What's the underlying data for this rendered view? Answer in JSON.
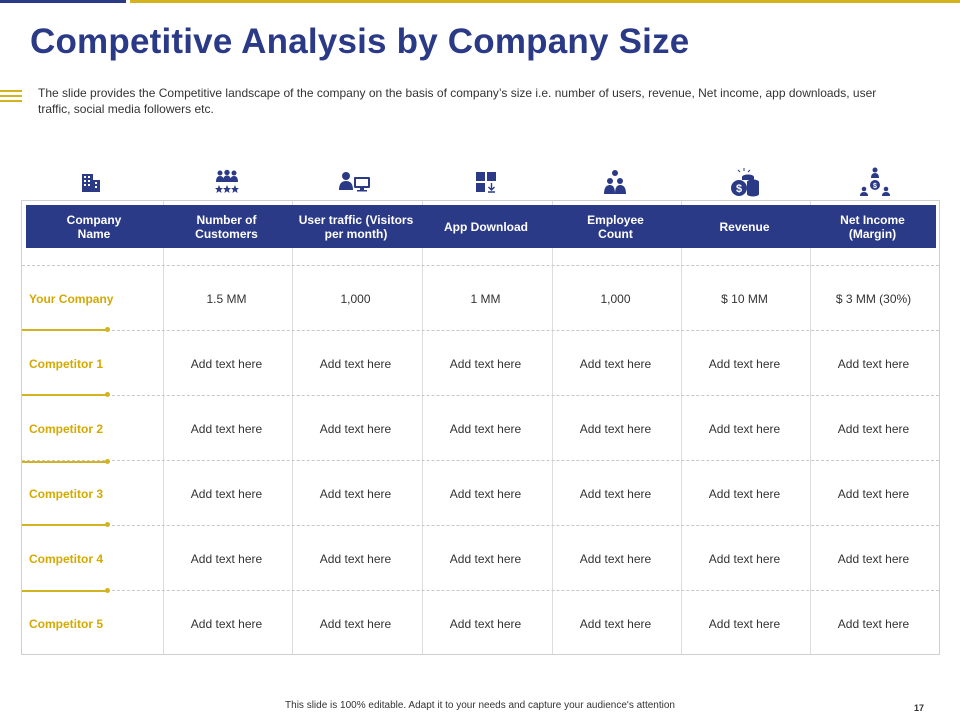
{
  "slide": {
    "title": "Competitive Analysis by Company Size",
    "description": "The slide provides  the Competitive  landscape of the company on the basis of company’s size i.e. number of users, revenue,  Net income, app downloads,  user traffic,  social media followers  etc.",
    "footer": "This slide is 100% editable.  Adapt it to your needs and capture your audience's attention",
    "page_number": "17"
  },
  "icons": [
    "building-icon",
    "people-group-icon",
    "user-monitor-icon",
    "app-grid-icon",
    "employee-group-icon",
    "coins-icon",
    "net-income-icon"
  ],
  "table": {
    "headers": [
      "Company\nName",
      "Number of\nCustomers",
      "User traffic (Visitors\nper month)",
      "App Download",
      "Employee\nCount",
      "Revenue",
      "Net Income\n(Margin)"
    ],
    "rows": [
      {
        "name": "Your Company",
        "cells": [
          "1.5 MM",
          "1,000",
          "1 MM",
          "1,000",
          "$ 10 MM",
          "$ 3 MM  (30%)"
        ]
      },
      {
        "name": "Competitor 1",
        "cells": [
          "Add text here",
          "Add text here",
          "Add text here",
          "Add text here",
          "Add text here",
          "Add text here"
        ]
      },
      {
        "name": "Competitor 2",
        "cells": [
          "Add text here",
          "Add text here",
          "Add text here",
          "Add text here",
          "Add text here",
          "Add text here"
        ]
      },
      {
        "name": "Competitor 3",
        "cells": [
          "Add text here",
          "Add text here",
          "Add text here",
          "Add text here",
          "Add text here",
          "Add text here"
        ]
      },
      {
        "name": "Competitor 4",
        "cells": [
          "Add text here",
          "Add text here",
          "Add text here",
          "Add text here",
          "Add text here",
          "Add text here"
        ]
      },
      {
        "name": "Competitor 5",
        "cells": [
          "Add text here",
          "Add text here",
          "Add text here",
          "Add text here",
          "Add text here",
          "Add text here"
        ]
      }
    ]
  },
  "colors": {
    "navy": "#2b3a87",
    "gold": "#d4b320"
  }
}
